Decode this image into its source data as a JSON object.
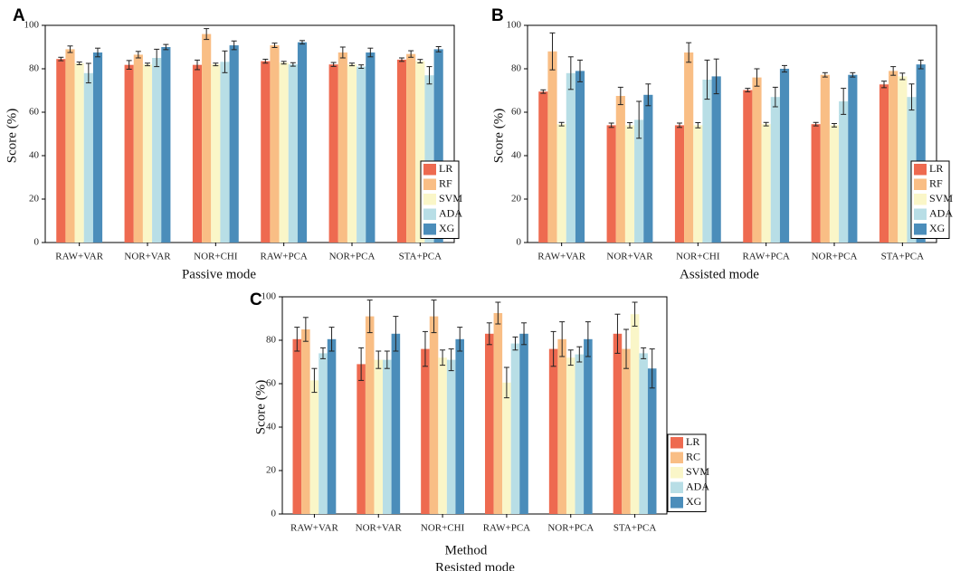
{
  "colors": {
    "LR": "#EE6A50",
    "RF": "#F9BE85",
    "SVM": "#FAF6C8",
    "ADA": "#B8DEE6",
    "XG": "#4B8DBA"
  },
  "chart_data": [
    {
      "type": "bar",
      "panel_label": "A",
      "xlabel": "Passive mode",
      "xlabel2": "",
      "ylabel": "Score (%)",
      "ylim": [
        0,
        100
      ],
      "yticks": [
        0,
        20,
        40,
        60,
        80,
        100
      ],
      "categories": [
        "RAW+VAR",
        "NOR+VAR",
        "NOR+CHI",
        "RAW+PCA",
        "NOR+PCA",
        "STA+PCA"
      ],
      "legend": [
        "LR",
        "RF",
        "SVM",
        "ADA",
        "XG"
      ],
      "series": [
        {
          "name": "LR",
          "values": [
            84.5,
            81.8,
            81.8,
            83.5,
            82.0,
            84.2
          ],
          "errors": [
            0.8,
            2.0,
            2.2,
            0.9,
            0.9,
            0.8
          ]
        },
        {
          "name": "RF",
          "values": [
            89.0,
            86.5,
            96.0,
            90.8,
            87.5,
            86.8
          ],
          "errors": [
            1.5,
            1.5,
            2.5,
            1.0,
            2.5,
            1.5
          ]
        },
        {
          "name": "SVM",
          "values": [
            82.5,
            82.0,
            82.0,
            82.8,
            82.0,
            83.5
          ],
          "errors": [
            0.6,
            0.6,
            0.6,
            0.6,
            0.6,
            0.8
          ]
        },
        {
          "name": "ADA",
          "values": [
            78.0,
            85.0,
            83.2,
            82.0,
            81.0,
            77.0
          ],
          "errors": [
            4.5,
            4.0,
            5.0,
            0.8,
            0.8,
            4.0
          ]
        },
        {
          "name": "XG",
          "values": [
            87.5,
            90.0,
            90.8,
            92.2,
            87.5,
            89.0
          ],
          "errors": [
            2.0,
            1.2,
            2.0,
            0.8,
            2.0,
            1.2
          ]
        }
      ]
    },
    {
      "type": "bar",
      "panel_label": "B",
      "xlabel": "Assisted mode",
      "xlabel2": "",
      "ylabel": "Score (%)",
      "ylim": [
        0,
        100
      ],
      "yticks": [
        0,
        20,
        40,
        60,
        80,
        100
      ],
      "categories": [
        "RAW+VAR",
        "NOR+VAR",
        "NOR+CHI",
        "RAW+PCA",
        "NOR+PCA",
        "STA+PCA"
      ],
      "legend": [
        "LR",
        "RF",
        "SVM",
        "ADA",
        "XG"
      ],
      "series": [
        {
          "name": "LR",
          "values": [
            69.5,
            54.0,
            54.0,
            70.2,
            54.5,
            72.8
          ],
          "errors": [
            0.8,
            1.0,
            1.0,
            0.8,
            0.8,
            1.5
          ]
        },
        {
          "name": "RF",
          "values": [
            88.0,
            67.5,
            87.5,
            76.0,
            77.2,
            79.0
          ],
          "errors": [
            8.5,
            4.0,
            4.5,
            4.0,
            1.0,
            2.0
          ]
        },
        {
          "name": "SVM",
          "values": [
            54.5,
            54.0,
            54.0,
            54.5,
            54.0,
            76.5
          ],
          "errors": [
            0.8,
            1.2,
            1.2,
            0.8,
            0.8,
            1.5
          ]
        },
        {
          "name": "ADA",
          "values": [
            78.0,
            56.5,
            75.0,
            67.0,
            65.0,
            67.0
          ],
          "errors": [
            7.5,
            8.5,
            9.0,
            4.5,
            6.0,
            6.0
          ]
        },
        {
          "name": "XG",
          "values": [
            79.0,
            68.0,
            76.5,
            80.0,
            77.2,
            82.0
          ],
          "errors": [
            5.0,
            5.0,
            8.0,
            1.5,
            1.0,
            2.0
          ]
        }
      ]
    },
    {
      "type": "bar",
      "panel_label": "C",
      "xlabel": "Method",
      "xlabel2": "Resisted mode",
      "ylabel": "Score (%)",
      "ylim": [
        0,
        100
      ],
      "yticks": [
        0,
        20,
        40,
        60,
        80,
        100
      ],
      "categories": [
        "RAW+VAR",
        "NOR+VAR",
        "NOR+CHI",
        "RAW+PCA",
        "NOR+PCA",
        "STA+PCA"
      ],
      "legend": [
        "LR",
        "RC",
        "SVM",
        "ADA",
        "XG"
      ],
      "series": [
        {
          "name": "LR",
          "values": [
            80.5,
            69.0,
            76.0,
            83.0,
            76.0,
            83.0
          ],
          "errors": [
            5.5,
            7.5,
            8.0,
            5.0,
            8.0,
            9.0
          ]
        },
        {
          "name": "RC",
          "values": [
            85.0,
            91.0,
            91.0,
            92.5,
            80.5,
            76.0
          ],
          "errors": [
            5.5,
            7.5,
            7.5,
            5.0,
            8.0,
            9.0
          ]
        },
        {
          "name": "SVM",
          "values": [
            61.5,
            71.0,
            72.0,
            60.5,
            72.0,
            92.0
          ],
          "errors": [
            5.5,
            4.0,
            3.5,
            7.0,
            3.5,
            5.5
          ]
        },
        {
          "name": "ADA",
          "values": [
            74.0,
            71.0,
            71.0,
            78.5,
            73.5,
            74.0
          ],
          "errors": [
            2.5,
            4.0,
            5.0,
            3.0,
            3.5,
            2.5
          ]
        },
        {
          "name": "XG",
          "values": [
            80.5,
            83.0,
            80.5,
            83.0,
            80.5,
            67.0
          ],
          "errors": [
            5.5,
            8.0,
            5.5,
            5.0,
            8.0,
            9.0
          ]
        }
      ]
    }
  ]
}
